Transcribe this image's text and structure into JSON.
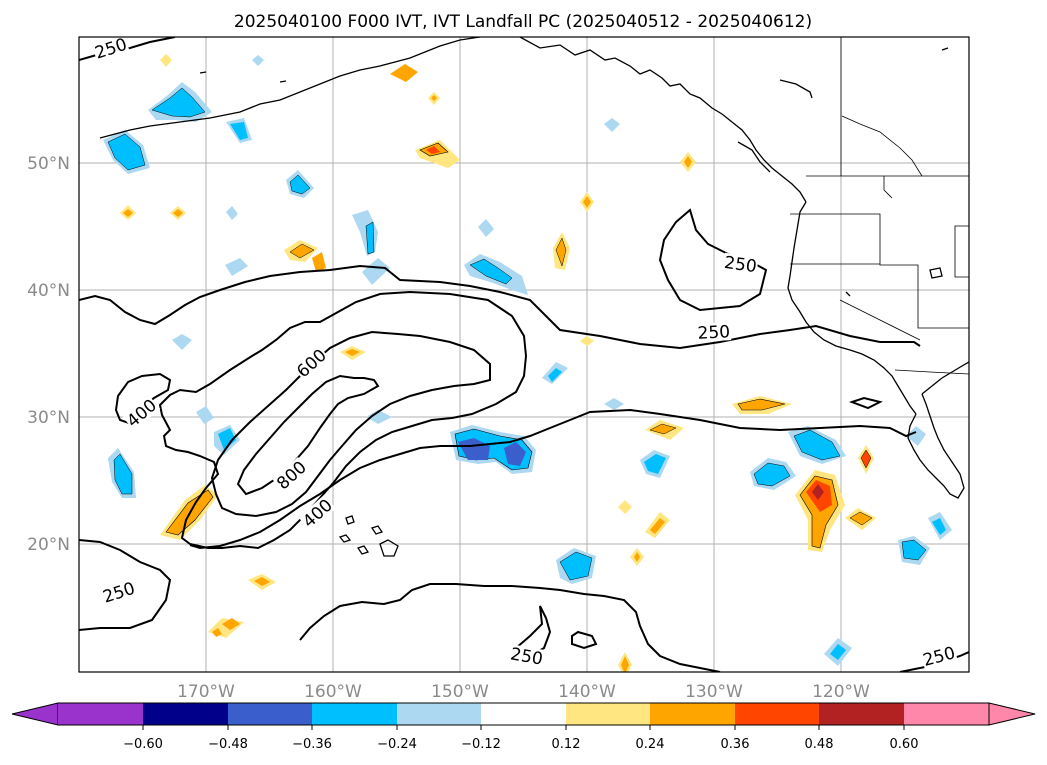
{
  "title": "2025040100 F000 IVT, IVT Landfall PC (2025040512 - 2025040612)",
  "lon_labels": [
    "170°W",
    "160°W",
    "150°W",
    "140°W",
    "130°W",
    "120°W"
  ],
  "lat_labels": [
    "50°N",
    "40°N",
    "30°N",
    "20°N"
  ],
  "contour_labels": [
    {
      "id": "c250-nw",
      "text": "250"
    },
    {
      "id": "c250-ne",
      "text": "250"
    },
    {
      "id": "c250-mid",
      "text": "250"
    },
    {
      "id": "c400-w",
      "text": "400"
    },
    {
      "id": "c600",
      "text": "600"
    },
    {
      "id": "c800",
      "text": "800"
    },
    {
      "id": "c400-s",
      "text": "400"
    },
    {
      "id": "c250-sw",
      "text": "250"
    },
    {
      "id": "c250-s",
      "text": "250"
    },
    {
      "id": "c250-se",
      "text": "250"
    }
  ],
  "colorbar": {
    "colors": [
      "#9933cc",
      "#00008b",
      "#3a5fcd",
      "#00bfff",
      "#add8f2",
      "#ffffff",
      "#ffe680",
      "#ffa500",
      "#ff4500",
      "#b22222",
      "#ff88aa"
    ],
    "tick_labels": [
      "−0.60",
      "−0.48",
      "−0.36",
      "−0.24",
      "−0.12",
      "0.12",
      "0.24",
      "0.36",
      "0.48",
      "0.60"
    ]
  },
  "colors": {
    "pos_light": "#ffe680",
    "pos_orange": "#ffa500",
    "pos_red": "#ff4500",
    "pos_dark": "#b22222",
    "neg_light": "#add8f2",
    "neg_cyan": "#00bfff",
    "neg_blue": "#3a5fcd"
  }
}
